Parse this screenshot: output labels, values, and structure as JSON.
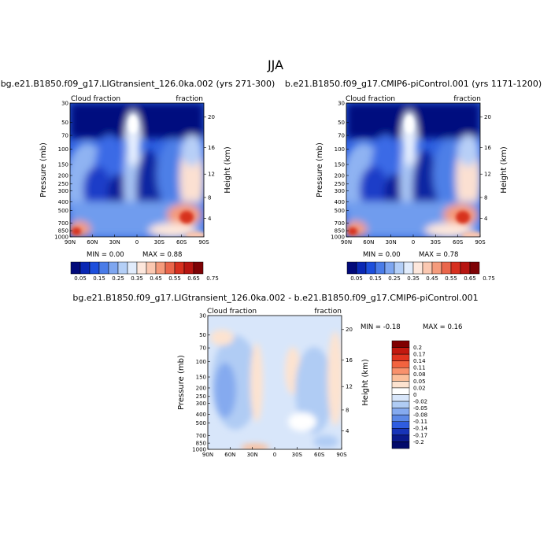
{
  "page": {
    "season_title": "JJA"
  },
  "panels": [
    {
      "title": "bg.e21.B1850.f09_g17.LIGtransient_126.0ka.002 (yrs 271-300)",
      "left_label": "Cloud fraction",
      "right_label": "fraction",
      "ylabel": "Pressure (mb)",
      "y2label": "Height (km)",
      "min_text": "MIN =    0.00",
      "max_text": "MAX =    0.88"
    },
    {
      "title": "b.e21.B1850.f09_g17.CMIP6-piControl.001 (yrs 1171-1200)",
      "left_label": "Cloud fraction",
      "right_label": "fraction",
      "ylabel": "Pressure (mb)",
      "y2label": "Height (km)",
      "min_text": "MIN =    0.00",
      "max_text": "MAX =    0.78"
    },
    {
      "title": "bg.e21.B1850.f09_g17.LIGtransient_126.0ka.002 - b.e21.B1850.f09_g17.CMIP6-piControl.001",
      "left_label": "Cloud fraction",
      "right_label": "fraction",
      "ylabel": "Pressure (mb)",
      "y2label": "Height (km)",
      "min_text": "MIN =   -0.18",
      "max_text": "MAX =    0.16"
    }
  ],
  "chart_data": [
    {
      "type": "heatmap",
      "title": "bg.e21.B1850.f09_g17.LIGtransient_126.0ka.002 (yrs 271-300)",
      "xlabel": "",
      "ylabel": "Pressure (mb)",
      "y2label": "Height (km)",
      "x_ticks": [
        "90N",
        "60N",
        "30N",
        "0",
        "30S",
        "60S",
        "90S"
      ],
      "y_ticks": [
        "30",
        "50",
        "70",
        "100",
        "150",
        "200",
        "250",
        "300",
        "400",
        "500",
        "700",
        "850",
        "1000"
      ],
      "y2_ticks": [
        "20",
        "16",
        "12",
        "8",
        "4"
      ],
      "levels": [
        0.05,
        0.15,
        0.25,
        0.35,
        0.45,
        0.55,
        0.65,
        0.75
      ],
      "min": 0.0,
      "max": 0.88,
      "field": "cloud fraction, latitude-pressure cross-section"
    },
    {
      "type": "heatmap",
      "title": "b.e21.B1850.f09_g17.CMIP6-piControl.001 (yrs 1171-1200)",
      "xlabel": "",
      "ylabel": "Pressure (mb)",
      "y2label": "Height (km)",
      "x_ticks": [
        "90N",
        "60N",
        "30N",
        "0",
        "30S",
        "60S",
        "90S"
      ],
      "y_ticks": [
        "30",
        "50",
        "70",
        "100",
        "150",
        "200",
        "250",
        "300",
        "400",
        "500",
        "700",
        "850",
        "1000"
      ],
      "y2_ticks": [
        "20",
        "16",
        "12",
        "8",
        "4"
      ],
      "levels": [
        0.05,
        0.15,
        0.25,
        0.35,
        0.45,
        0.55,
        0.65,
        0.75
      ],
      "min": 0.0,
      "max": 0.78,
      "field": "cloud fraction, latitude-pressure cross-section"
    },
    {
      "type": "heatmap",
      "title": "bg.e21.B1850.f09_g17.LIGtransient_126.0ka.002 - b.e21.B1850.f09_g17.CMIP6-piControl.001",
      "xlabel": "",
      "ylabel": "Pressure (mb)",
      "y2label": "Height (km)",
      "x_ticks": [
        "90N",
        "60N",
        "30N",
        "0",
        "30S",
        "60S",
        "90S"
      ],
      "y_ticks": [
        "30",
        "50",
        "70",
        "100",
        "150",
        "200",
        "250",
        "300",
        "400",
        "500",
        "700",
        "850",
        "1000"
      ],
      "y2_ticks": [
        "20",
        "16",
        "12",
        "8",
        "4"
      ],
      "levels": [
        0.2,
        0.17,
        0.14,
        0.11,
        0.08,
        0.05,
        0.02,
        0,
        -0.02,
        -0.05,
        -0.08,
        -0.11,
        -0.14,
        -0.17,
        -0.2
      ],
      "level_labels": [
        "0.2",
        "0.17",
        "0.14",
        "0.11",
        "0.08",
        "0.05",
        "0.02",
        "0",
        "-0.02",
        "-0.05",
        "-0.08",
        "-0.11",
        "-0.14",
        "-0.17",
        "-0.2"
      ],
      "min": -0.18,
      "max": 0.16,
      "field": "cloud fraction difference"
    }
  ],
  "colors": {
    "abs_scale": [
      "#020a7a",
      "#0a28b4",
      "#1d4fdc",
      "#4a7ce8",
      "#7ea6f0",
      "#b4cff7",
      "#e1ecfc",
      "#fde7dc",
      "#fbc8b1",
      "#f59b7c",
      "#ea664b",
      "#d7301f",
      "#b71511",
      "#7e0205"
    ],
    "diff_scale": [
      "#800000",
      "#c2190f",
      "#e0341f",
      "#f2633f",
      "#f8916c",
      "#fbbf9b",
      "#fde3d0",
      "#ffffff",
      "#d8e6fa",
      "#b0ccf4",
      "#85aaef",
      "#5c88e6",
      "#2f5ce0",
      "#1834b8",
      "#0b1a8c",
      "#020a6a"
    ]
  }
}
